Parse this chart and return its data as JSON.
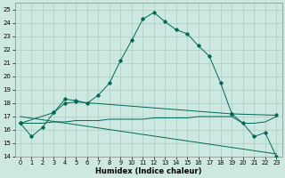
{
  "xlabel": "Humidex (Indice chaleur)",
  "bg_color": "#cce8e0",
  "grid_color": "#aaccc4",
  "line_color": "#006858",
  "xlim": [
    -0.5,
    23.5
  ],
  "ylim": [
    14,
    25.5
  ],
  "yticks": [
    14,
    15,
    16,
    17,
    18,
    19,
    20,
    21,
    22,
    23,
    24,
    25
  ],
  "xticks": [
    0,
    1,
    2,
    3,
    4,
    5,
    6,
    7,
    8,
    9,
    10,
    11,
    12,
    13,
    14,
    15,
    16,
    17,
    18,
    19,
    20,
    21,
    22,
    23
  ],
  "series1_x": [
    0,
    1,
    2,
    3,
    4,
    5,
    6,
    7,
    8,
    9,
    10,
    11,
    12,
    13,
    14,
    15,
    16,
    17,
    18,
    19,
    20,
    21,
    22,
    23
  ],
  "series1_y": [
    16.5,
    15.5,
    16.2,
    17.3,
    18.3,
    18.2,
    18.0,
    18.6,
    19.5,
    21.2,
    22.7,
    24.3,
    24.8,
    24.1,
    23.5,
    23.2,
    22.3,
    21.5,
    19.5,
    17.2,
    16.5,
    15.5,
    15.8,
    14.0
  ],
  "series2_x": [
    0,
    1,
    2,
    3,
    4,
    5,
    6,
    7,
    8,
    9,
    10,
    11,
    12,
    13,
    14,
    15,
    16,
    17,
    18,
    19,
    20,
    21,
    22,
    23
  ],
  "series2_y": [
    16.5,
    16.5,
    16.5,
    16.6,
    16.6,
    16.7,
    16.7,
    16.7,
    16.8,
    16.8,
    16.8,
    16.8,
    16.9,
    16.9,
    16.9,
    16.9,
    17.0,
    17.0,
    17.0,
    17.0,
    16.5,
    16.5,
    16.6,
    17.0
  ],
  "series3_x": [
    0,
    23
  ],
  "series3_y": [
    17.0,
    14.2
  ],
  "series4_x": [
    0,
    3,
    4,
    5,
    19,
    23
  ],
  "series4_y": [
    16.5,
    17.3,
    18.0,
    18.1,
    17.2,
    17.1
  ]
}
